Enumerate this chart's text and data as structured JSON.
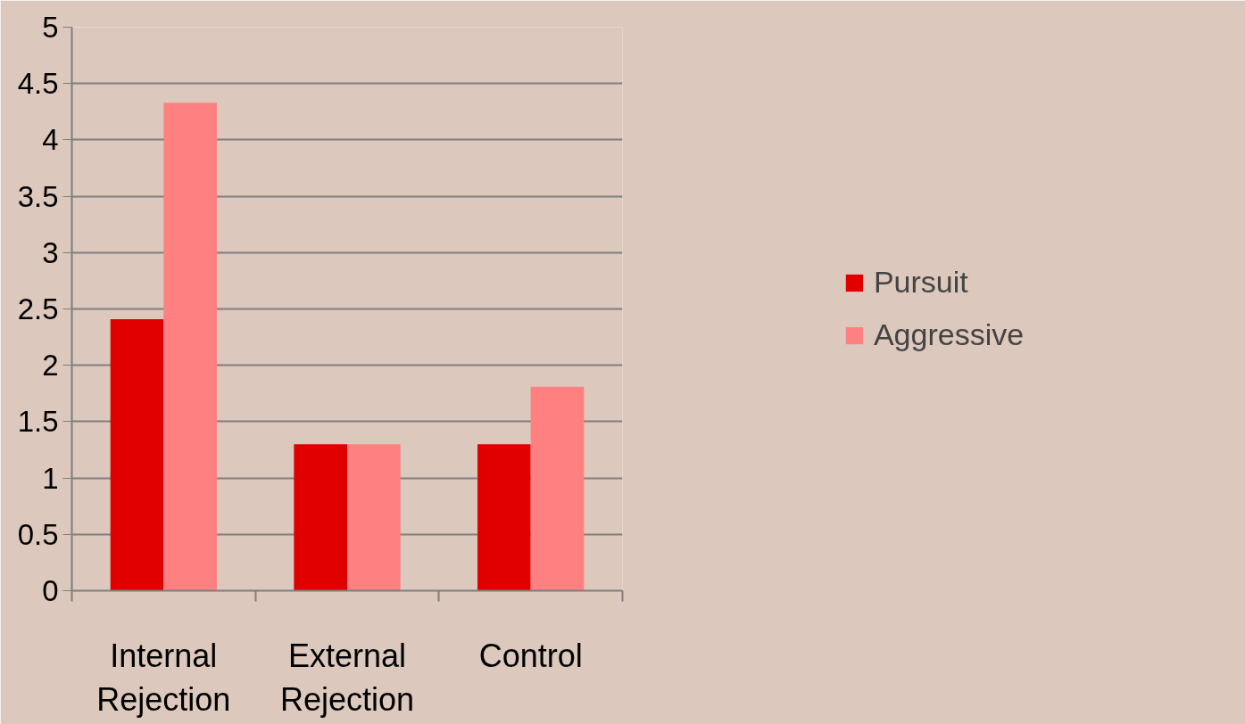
{
  "chart_data": {
    "type": "bar",
    "categories": [
      "Internal Rejection",
      "External Rejection",
      "Control"
    ],
    "series": [
      {
        "name": "Pursuit",
        "color": "#e00000",
        "values": [
          2.41,
          1.3,
          1.3
        ]
      },
      {
        "name": "Aggressive",
        "color": "#ff8080",
        "values": [
          4.33,
          1.3,
          1.81
        ]
      }
    ],
    "ylim": [
      0,
      5
    ],
    "yticks": [
      0,
      0.5,
      1,
      1.5,
      2,
      2.5,
      3,
      3.5,
      4,
      4.5,
      5
    ],
    "grid": "y",
    "legend": "right"
  }
}
